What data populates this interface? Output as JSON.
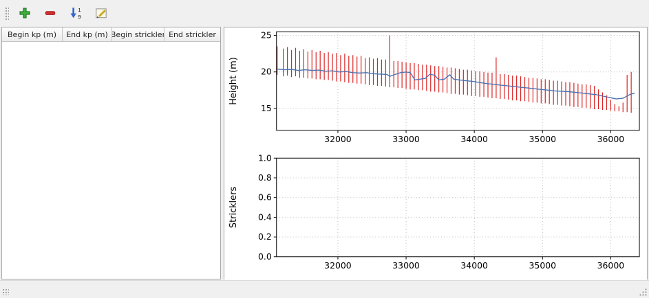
{
  "toolbar": {
    "buttons": [
      {
        "icon": "add-plus-icon",
        "color": "#2f9e2f"
      },
      {
        "icon": "remove-minus-icon",
        "color": "#d03030"
      },
      {
        "icon": "sort-numeric-icon",
        "color": "#3565c8",
        "digits": [
          "1",
          "9"
        ]
      },
      {
        "icon": "edit-pencil-icon",
        "color": "#e3c53e"
      }
    ]
  },
  "table": {
    "columns": [
      "Begin kp (m)",
      "End kp (m)",
      "Begin strickler",
      "End strickler"
    ],
    "rows": []
  },
  "chart_data": [
    {
      "type": "line",
      "title": "",
      "xlabel": "",
      "ylabel": "Height (m)",
      "xlim": [
        31100,
        36420
      ],
      "ylim": [
        12.0,
        25.5
      ],
      "xticks": [
        32000,
        33000,
        34000,
        35000,
        36000
      ],
      "xtick_labels": [
        "32000",
        "33000",
        "34000",
        "35000",
        "36000"
      ],
      "yticks": [
        15,
        20,
        25
      ],
      "ytick_labels": [
        "15",
        "20",
        "25"
      ],
      "grid": true,
      "legend": "none",
      "series": [
        {
          "name": "cross-section-range-bars",
          "type": "vbar-range",
          "color": "#dd2222",
          "bars": [
            [
              31110,
              19.6,
              23.5
            ],
            [
              31200,
              19.4,
              23.2
            ],
            [
              31260,
              19.5,
              23.4
            ],
            [
              31320,
              19.3,
              23.0
            ],
            [
              31380,
              19.4,
              23.3
            ],
            [
              31440,
              19.2,
              22.9
            ],
            [
              31500,
              19.2,
              23.1
            ],
            [
              31560,
              19.1,
              22.8
            ],
            [
              31620,
              19.1,
              23.0
            ],
            [
              31680,
              19.0,
              22.7
            ],
            [
              31740,
              19.0,
              22.9
            ],
            [
              31800,
              18.9,
              22.6
            ],
            [
              31860,
              18.9,
              22.7
            ],
            [
              31920,
              18.8,
              22.5
            ],
            [
              31980,
              18.7,
              22.6
            ],
            [
              32040,
              18.7,
              22.3
            ],
            [
              32100,
              18.6,
              22.5
            ],
            [
              32160,
              18.5,
              22.2
            ],
            [
              32220,
              18.5,
              22.3
            ],
            [
              32280,
              18.4,
              22.1
            ],
            [
              32340,
              18.4,
              22.2
            ],
            [
              32400,
              18.3,
              21.9
            ],
            [
              32460,
              18.2,
              22.0
            ],
            [
              32520,
              18.2,
              21.8
            ],
            [
              32580,
              18.1,
              21.9
            ],
            [
              32640,
              18.1,
              21.7
            ],
            [
              32700,
              18.0,
              21.7
            ],
            [
              32760,
              17.9,
              25.0
            ],
            [
              32820,
              17.9,
              21.5
            ],
            [
              32880,
              17.8,
              21.5
            ],
            [
              32940,
              17.8,
              21.4
            ],
            [
              33000,
              17.7,
              21.3
            ],
            [
              33060,
              17.6,
              21.2
            ],
            [
              33120,
              17.6,
              21.2
            ],
            [
              33180,
              17.5,
              21.1
            ],
            [
              33240,
              17.5,
              21.0
            ],
            [
              33300,
              17.4,
              21.0
            ],
            [
              33360,
              17.3,
              20.9
            ],
            [
              33420,
              17.3,
              20.8
            ],
            [
              33480,
              17.2,
              20.8
            ],
            [
              33540,
              17.2,
              20.7
            ],
            [
              33600,
              17.1,
              20.6
            ],
            [
              33660,
              17.0,
              20.6
            ],
            [
              33720,
              17.0,
              20.5
            ],
            [
              33780,
              16.9,
              20.4
            ],
            [
              33840,
              16.9,
              20.3
            ],
            [
              33900,
              16.8,
              20.3
            ],
            [
              33960,
              16.7,
              20.2
            ],
            [
              34020,
              16.7,
              20.1
            ],
            [
              34080,
              16.6,
              20.1
            ],
            [
              34140,
              16.6,
              20.0
            ],
            [
              34200,
              16.5,
              19.9
            ],
            [
              34260,
              16.4,
              19.9
            ],
            [
              34320,
              16.4,
              22.0
            ],
            [
              34380,
              16.3,
              19.7
            ],
            [
              34440,
              16.3,
              19.7
            ],
            [
              34500,
              16.2,
              19.6
            ],
            [
              34560,
              16.1,
              19.5
            ],
            [
              34620,
              16.1,
              19.5
            ],
            [
              34680,
              16.0,
              19.4
            ],
            [
              34740,
              16.0,
              19.3
            ],
            [
              34800,
              15.9,
              19.2
            ],
            [
              34860,
              15.8,
              19.2
            ],
            [
              34920,
              15.8,
              19.1
            ],
            [
              34980,
              15.7,
              19.0
            ],
            [
              35040,
              15.7,
              19.0
            ],
            [
              35100,
              15.6,
              18.9
            ],
            [
              35160,
              15.5,
              18.8
            ],
            [
              35220,
              15.5,
              18.8
            ],
            [
              35280,
              15.4,
              18.7
            ],
            [
              35340,
              15.4,
              18.6
            ],
            [
              35400,
              15.3,
              18.6
            ],
            [
              35460,
              15.2,
              18.5
            ],
            [
              35520,
              15.2,
              18.4
            ],
            [
              35580,
              15.1,
              18.3
            ],
            [
              35640,
              15.1,
              18.3
            ],
            [
              35700,
              15.0,
              18.2
            ],
            [
              35760,
              14.9,
              18.1
            ],
            [
              35820,
              14.9,
              17.6
            ],
            [
              35880,
              14.8,
              17.2
            ],
            [
              35940,
              14.8,
              16.8
            ],
            [
              36000,
              14.7,
              16.2
            ],
            [
              36060,
              14.6,
              15.6
            ],
            [
              36120,
              14.6,
              15.3
            ],
            [
              36180,
              14.5,
              15.8
            ],
            [
              36240,
              14.5,
              19.6
            ],
            [
              36300,
              14.4,
              20.0
            ]
          ]
        },
        {
          "name": "bed-elevation-line",
          "type": "line",
          "color": "#4c72b0",
          "points": [
            [
              31100,
              20.4
            ],
            [
              31220,
              20.3
            ],
            [
              31320,
              20.35
            ],
            [
              31420,
              20.2
            ],
            [
              31520,
              20.3
            ],
            [
              31620,
              20.2
            ],
            [
              31720,
              20.25
            ],
            [
              31820,
              20.1
            ],
            [
              31920,
              20.15
            ],
            [
              32020,
              20.0
            ],
            [
              32120,
              20.05
            ],
            [
              32220,
              19.9
            ],
            [
              32320,
              19.85
            ],
            [
              32420,
              19.9
            ],
            [
              32520,
              19.75
            ],
            [
              32620,
              19.7
            ],
            [
              32720,
              19.65
            ],
            [
              32760,
              19.4
            ],
            [
              32820,
              19.6
            ],
            [
              32920,
              19.9
            ],
            [
              33000,
              20.0
            ],
            [
              33060,
              19.9
            ],
            [
              33130,
              18.9
            ],
            [
              33200,
              19.0
            ],
            [
              33280,
              19.1
            ],
            [
              33350,
              19.7
            ],
            [
              33420,
              19.55
            ],
            [
              33480,
              18.9
            ],
            [
              33560,
              19.0
            ],
            [
              33640,
              19.6
            ],
            [
              33700,
              19.0
            ],
            [
              33780,
              18.9
            ],
            [
              33880,
              18.8
            ],
            [
              33980,
              18.7
            ],
            [
              34080,
              18.55
            ],
            [
              34180,
              18.4
            ],
            [
              34280,
              18.3
            ],
            [
              34380,
              18.2
            ],
            [
              34480,
              18.1
            ],
            [
              34580,
              18.0
            ],
            [
              34680,
              17.9
            ],
            [
              34780,
              17.8
            ],
            [
              34880,
              17.7
            ],
            [
              34980,
              17.6
            ],
            [
              35080,
              17.5
            ],
            [
              35180,
              17.4
            ],
            [
              35280,
              17.35
            ],
            [
              35380,
              17.3
            ],
            [
              35480,
              17.2
            ],
            [
              35580,
              17.1
            ],
            [
              35680,
              17.0
            ],
            [
              35780,
              16.9
            ],
            [
              35880,
              16.7
            ],
            [
              35980,
              16.5
            ],
            [
              36080,
              16.3
            ],
            [
              36180,
              16.4
            ],
            [
              36280,
              16.9
            ],
            [
              36350,
              17.1
            ]
          ]
        }
      ]
    },
    {
      "type": "line",
      "title": "",
      "xlabel": "",
      "ylabel": "Stricklers",
      "xlim": [
        31100,
        36420
      ],
      "ylim": [
        0.0,
        1.0
      ],
      "xticks": [
        32000,
        33000,
        34000,
        35000,
        36000
      ],
      "xtick_labels": [
        "32000",
        "33000",
        "34000",
        "35000",
        "36000"
      ],
      "yticks": [
        0.0,
        0.2,
        0.4,
        0.6,
        0.8,
        1.0
      ],
      "ytick_labels": [
        "0.0",
        "0.2",
        "0.4",
        "0.6",
        "0.8",
        "1.0"
      ],
      "grid": true,
      "legend": "none",
      "series": []
    }
  ]
}
